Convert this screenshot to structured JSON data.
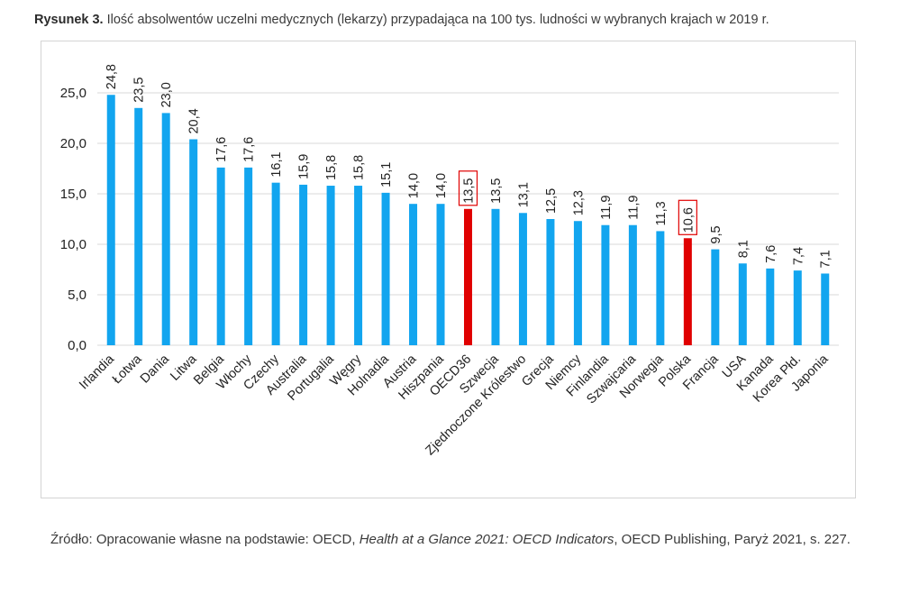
{
  "caption": {
    "prefix": "Rysunek 3.",
    "text": "Ilość absolwentów uczelni medycznych (lekarzy) przypadająca na 100 tys. ludności w wybranych krajach w 2019 r."
  },
  "colors": {
    "default_bar": "#12a5ef",
    "highlight_bar": "#e00000",
    "highlight_box": "#e00000",
    "grid": "#d9d9d9"
  },
  "chart_data": {
    "type": "bar",
    "title": "",
    "xlabel": "",
    "ylabel": "",
    "ylim": [
      0,
      25
    ],
    "yticks": [
      "0,0",
      "5,0",
      "10,0",
      "15,0",
      "20,0",
      "25,0"
    ],
    "categories": [
      "Irlandia",
      "Łotwa",
      "Dania",
      "Litwa",
      "Belgia",
      "Włochy",
      "Czechy",
      "Australia",
      "Portugalia",
      "Węgry",
      "Holnadia",
      "Austria",
      "Hiszpania",
      "OECD36",
      "Szwecja",
      "Zjednoczone Królestwo",
      "Grecja",
      "Niemcy",
      "Finlandia",
      "Szwajcaria",
      "Norwegia",
      "Polska",
      "Francja",
      "USA",
      "Kanada",
      "Korea Płd.",
      "Japonia"
    ],
    "values": [
      24.8,
      23.5,
      23.0,
      20.4,
      17.6,
      17.6,
      16.1,
      15.9,
      15.8,
      15.8,
      15.1,
      14.0,
      14.0,
      13.5,
      13.5,
      13.1,
      12.5,
      12.3,
      11.9,
      11.9,
      11.3,
      10.6,
      9.5,
      8.1,
      7.6,
      7.4,
      7.1
    ],
    "value_labels": [
      "24,8",
      "23,5",
      "23,0",
      "20,4",
      "17,6",
      "17,6",
      "16,1",
      "15,9",
      "15,8",
      "15,8",
      "15,1",
      "14,0",
      "14,0",
      "13,5",
      "13,5",
      "13,1",
      "12,5",
      "12,3",
      "11,9",
      "11,9",
      "11,3",
      "10,6",
      "9,5",
      "8,1",
      "7,6",
      "7,4",
      "7,1"
    ],
    "highlighted": [
      "OECD36",
      "Polska"
    ]
  },
  "source": {
    "prefix": "Źródło: Opracowanie własne na podstawie: OECD, ",
    "title": "Health at a Glance 2021: OECD Indicators",
    "suffix": ", OECD Publishing, Paryż 2021, s. 227."
  }
}
